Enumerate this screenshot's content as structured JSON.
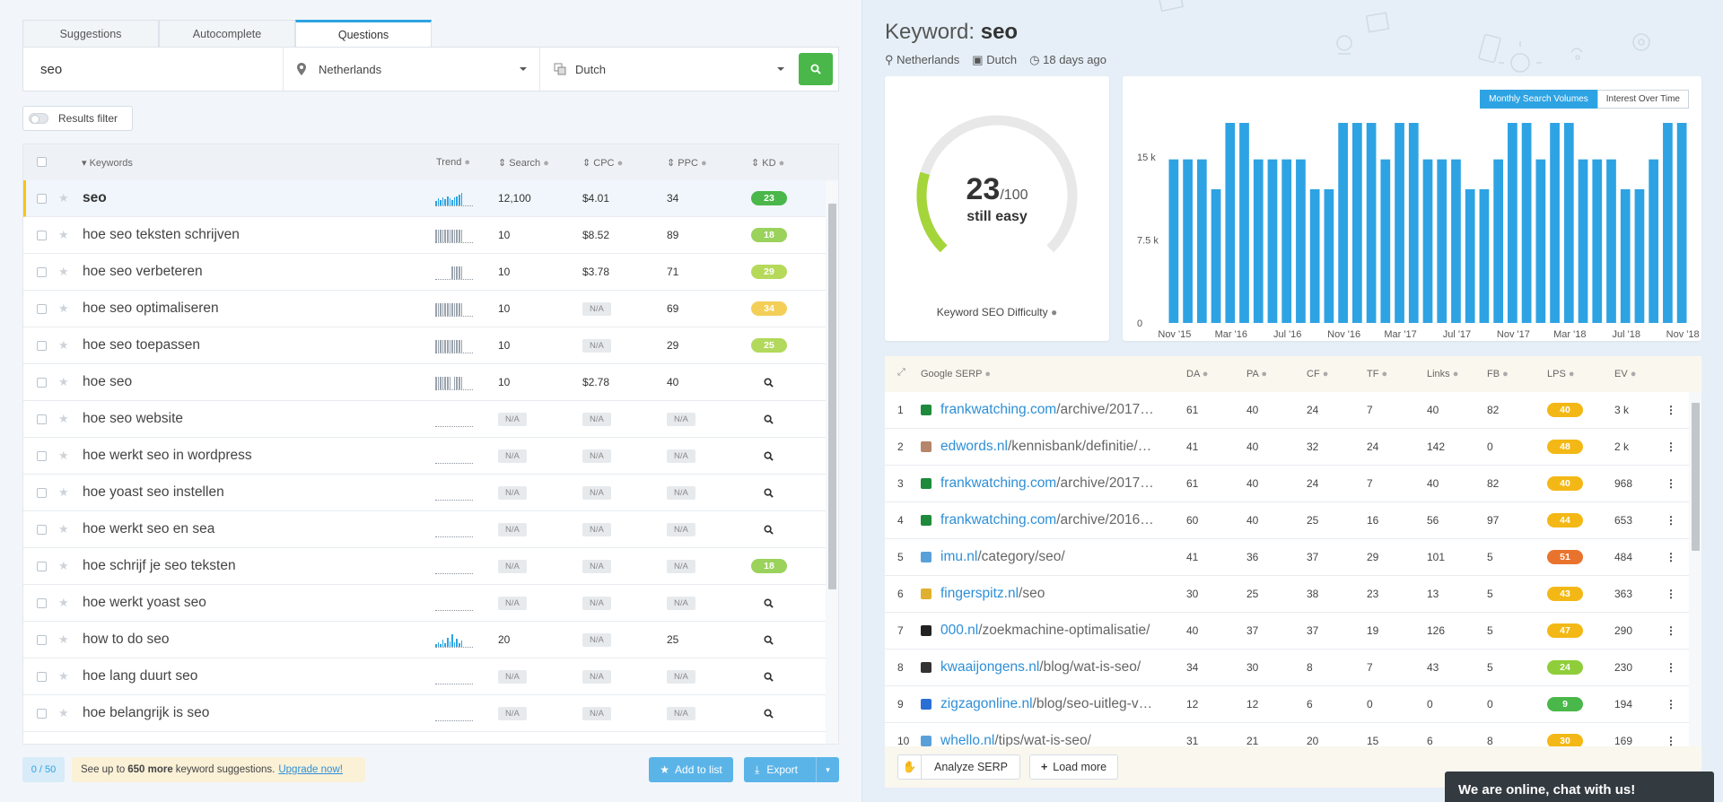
{
  "tabs": [
    "Suggestions",
    "Autocomplete",
    "Questions"
  ],
  "search": {
    "value": "seo",
    "location": "Netherlands",
    "language": "Dutch"
  },
  "filter_label": "Results filter",
  "columns": {
    "keywords": "Keywords",
    "trend": "Trend",
    "search": "Search",
    "cpc": "CPC",
    "ppc": "PPC",
    "kd": "KD"
  },
  "keywords": [
    {
      "kw": "seo",
      "search": "12,100",
      "cpc": "$4.01",
      "ppc": "34",
      "kd": "23",
      "kd_color": "#49b749"
    },
    {
      "kw": "hoe seo teksten schrijven",
      "search": "10",
      "cpc": "$8.52",
      "ppc": "89",
      "kd": "18",
      "kd_color": "#9ad25c"
    },
    {
      "kw": "hoe seo verbeteren",
      "search": "10",
      "cpc": "$3.78",
      "ppc": "71",
      "kd": "29",
      "kd_color": "#b6d95a"
    },
    {
      "kw": "hoe seo optimaliseren",
      "search": "10",
      "cpc": "N/A",
      "ppc": "69",
      "kd": "34",
      "kd_color": "#f3cf57"
    },
    {
      "kw": "hoe seo toepassen",
      "search": "10",
      "cpc": "N/A",
      "ppc": "29",
      "kd": "25",
      "kd_color": "#b2d95c"
    },
    {
      "kw": "hoe seo",
      "search": "10",
      "cpc": "$2.78",
      "ppc": "40",
      "kd": "",
      "kd_color": ""
    },
    {
      "kw": "hoe seo website",
      "search": "N/A",
      "cpc": "N/A",
      "ppc": "N/A",
      "kd": "",
      "kd_color": ""
    },
    {
      "kw": "hoe werkt seo in wordpress",
      "search": "N/A",
      "cpc": "N/A",
      "ppc": "N/A",
      "kd": "",
      "kd_color": ""
    },
    {
      "kw": "hoe yoast seo instellen",
      "search": "N/A",
      "cpc": "N/A",
      "ppc": "N/A",
      "kd": "",
      "kd_color": ""
    },
    {
      "kw": "hoe werkt seo en sea",
      "search": "N/A",
      "cpc": "N/A",
      "ppc": "N/A",
      "kd": "",
      "kd_color": ""
    },
    {
      "kw": "hoe schrijf je seo teksten",
      "search": "N/A",
      "cpc": "N/A",
      "ppc": "N/A",
      "kd": "18",
      "kd_color": "#9ad25c"
    },
    {
      "kw": "hoe werkt yoast seo",
      "search": "N/A",
      "cpc": "N/A",
      "ppc": "N/A",
      "kd": "",
      "kd_color": ""
    },
    {
      "kw": "how to do seo",
      "search": "20",
      "cpc": "N/A",
      "ppc": "25",
      "kd": "",
      "kd_color": ""
    },
    {
      "kw": "hoe lang duurt seo",
      "search": "N/A",
      "cpc": "N/A",
      "ppc": "N/A",
      "kd": "",
      "kd_color": ""
    },
    {
      "kw": "hoe belangrijk is seo",
      "search": "N/A",
      "cpc": "N/A",
      "ppc": "N/A",
      "kd": "",
      "kd_color": ""
    }
  ],
  "footer": {
    "counter": "0 / 50",
    "promo_pre": "See up to",
    "promo_bold": "650 more",
    "promo_post": "keyword suggestions.",
    "promo_link": "Upgrade now!",
    "add_to_list": "Add to list",
    "export": "Export"
  },
  "keyword_panel": {
    "title_prefix": "Keyword:",
    "keyword": "seo",
    "location": "Netherlands",
    "language": "Dutch",
    "age": "18 days ago"
  },
  "difficulty": {
    "score": "23",
    "max": "/100",
    "label": "still easy",
    "caption": "Keyword SEO Difficulty",
    "value": 23
  },
  "chart_buttons": [
    "Monthly Search Volumes",
    "Interest Over Time"
  ],
  "chart_data": {
    "type": "bar",
    "title": "",
    "xlabel": "",
    "ylabel": "",
    "ylim": [
      0,
      18100
    ],
    "yticks": [
      "0",
      "7.5 k",
      "15 k"
    ],
    "xticks": [
      "Nov '15",
      "Mar '16",
      "Jul '16",
      "Nov '16",
      "Mar '17",
      "Jul '17",
      "Nov '17",
      "Mar '18",
      "Jul '18",
      "Nov '18"
    ],
    "categories": [
      "Nov '15",
      "Dec '15",
      "Jan '16",
      "Feb '16",
      "Mar '16",
      "Apr '16",
      "May '16",
      "Jun '16",
      "Jul '16",
      "Aug '16",
      "Sep '16",
      "Oct '16",
      "Nov '16",
      "Dec '16",
      "Jan '17",
      "Feb '17",
      "Mar '17",
      "Apr '17",
      "May '17",
      "Jun '17",
      "Jul '17",
      "Aug '17",
      "Sep '17",
      "Oct '17",
      "Nov '17",
      "Dec '17",
      "Jan '18",
      "Feb '18",
      "Mar '18",
      "Apr '18",
      "May '18",
      "Jun '18",
      "Jul '18",
      "Aug '18",
      "Sep '18",
      "Oct '18",
      "Nov '18"
    ],
    "values": [
      14800,
      14800,
      14800,
      12100,
      18100,
      18100,
      14800,
      14800,
      14800,
      14800,
      12100,
      12100,
      18100,
      18100,
      18100,
      14800,
      18100,
      18100,
      14800,
      14800,
      14800,
      12100,
      12100,
      14800,
      18100,
      18100,
      14800,
      18100,
      18100,
      14800,
      14800,
      14800,
      12100,
      12100,
      14800,
      18100,
      18100
    ],
    "color": "#2ea3e3"
  },
  "serp_columns": {
    "serp": "Google SERP",
    "da": "DA",
    "pa": "PA",
    "cf": "CF",
    "tf": "TF",
    "links": "Links",
    "fb": "FB",
    "lps": "LPS",
    "ev": "EV"
  },
  "serp": [
    {
      "n": "1",
      "domain": "frankwatching.com",
      "path": "/archive/2017…",
      "da": "61",
      "pa": "40",
      "cf": "24",
      "tf": "7",
      "links": "40",
      "fb": "82",
      "lps": "40",
      "lps_color": "#f3b816",
      "ev": "3 k",
      "fav": "#1e8a3c"
    },
    {
      "n": "2",
      "domain": "edwords.nl",
      "path": "/kennisbank/definitie/…",
      "da": "41",
      "pa": "40",
      "cf": "32",
      "tf": "24",
      "links": "142",
      "fb": "0",
      "lps": "48",
      "lps_color": "#f3b816",
      "ev": "2 k",
      "fav": "#b5866a"
    },
    {
      "n": "3",
      "domain": "frankwatching.com",
      "path": "/archive/2017…",
      "da": "61",
      "pa": "40",
      "cf": "24",
      "tf": "7",
      "links": "40",
      "fb": "82",
      "lps": "40",
      "lps_color": "#f3b816",
      "ev": "968",
      "fav": "#1e8a3c"
    },
    {
      "n": "4",
      "domain": "frankwatching.com",
      "path": "/archive/2016…",
      "da": "60",
      "pa": "40",
      "cf": "25",
      "tf": "16",
      "links": "56",
      "fb": "97",
      "lps": "44",
      "lps_color": "#f3b816",
      "ev": "653",
      "fav": "#1e8a3c"
    },
    {
      "n": "5",
      "domain": "imu.nl",
      "path": "/category/seo/",
      "da": "41",
      "pa": "36",
      "cf": "37",
      "tf": "29",
      "links": "101",
      "fb": "5",
      "lps": "51",
      "lps_color": "#e9732c",
      "ev": "484",
      "fav": "#5aa0d8"
    },
    {
      "n": "6",
      "domain": "fingerspitz.nl",
      "path": "/seo",
      "da": "30",
      "pa": "25",
      "cf": "38",
      "tf": "23",
      "links": "13",
      "fb": "5",
      "lps": "43",
      "lps_color": "#f3b816",
      "ev": "363",
      "fav": "#e0b030"
    },
    {
      "n": "7",
      "domain": "000.nl",
      "path": "/zoekmachine-optimalisatie/",
      "da": "40",
      "pa": "37",
      "cf": "37",
      "tf": "19",
      "links": "126",
      "fb": "5",
      "lps": "47",
      "lps_color": "#f3b816",
      "ev": "290",
      "fav": "#222222"
    },
    {
      "n": "8",
      "domain": "kwaaijongens.nl",
      "path": "/blog/wat-is-seo/",
      "da": "34",
      "pa": "30",
      "cf": "8",
      "tf": "7",
      "links": "43",
      "fb": "5",
      "lps": "24",
      "lps_color": "#8fce3a",
      "ev": "230",
      "fav": "#333333"
    },
    {
      "n": "9",
      "domain": "zigzagonline.nl",
      "path": "/blog/seo-uitleg-v…",
      "da": "12",
      "pa": "12",
      "cf": "6",
      "tf": "0",
      "links": "0",
      "fb": "0",
      "lps": "9",
      "lps_color": "#49b749",
      "ev": "194",
      "fav": "#2a6fd6"
    },
    {
      "n": "10",
      "domain": "whello.nl",
      "path": "/tips/wat-is-seo/",
      "da": "31",
      "pa": "21",
      "cf": "20",
      "tf": "15",
      "links": "6",
      "fb": "8",
      "lps": "30",
      "lps_color": "#f3b816",
      "ev": "169",
      "fav": "#5aa0d8"
    }
  ],
  "serp_footer": {
    "analyze": "Analyze SERP",
    "load_more": "Load more"
  },
  "chat": "We are online, chat with us!"
}
